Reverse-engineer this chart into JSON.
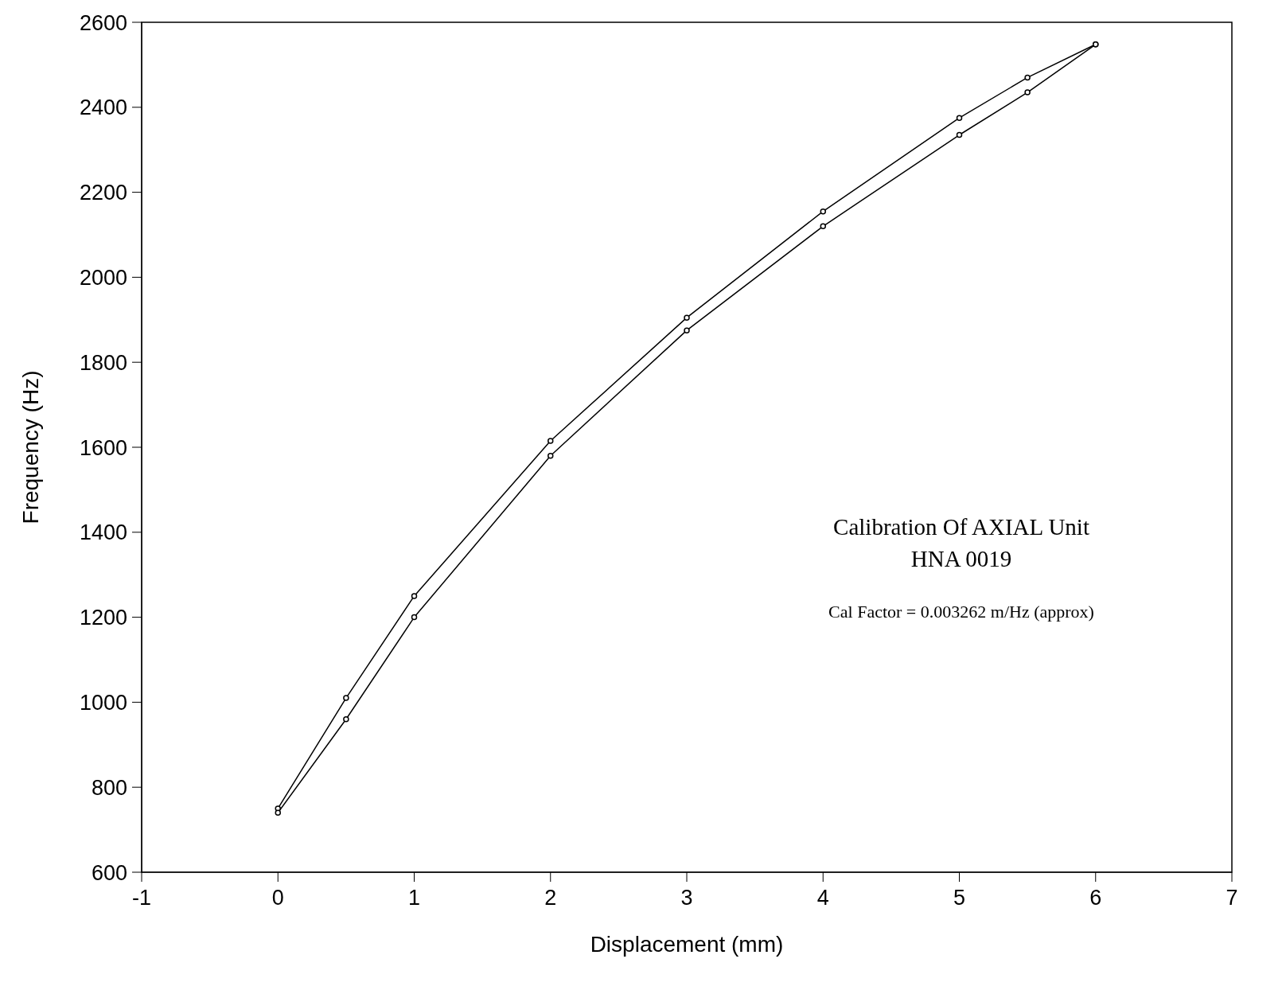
{
  "chart_data": {
    "type": "line",
    "xlabel": "Displacement (mm)",
    "ylabel": "Frequency (Hz)",
    "x": [
      0,
      0.5,
      1,
      2,
      3,
      4,
      5,
      5.5,
      6
    ],
    "series": [
      {
        "color": "#000000",
        "values": [
          750,
          1010,
          1250,
          1615,
          1905,
          2155,
          2375,
          2470,
          2548
        ]
      },
      {
        "color": "#000000",
        "values": [
          740,
          960,
          1200,
          1580,
          1875,
          2120,
          2335,
          2435,
          2548
        ]
      }
    ],
    "xlim": [
      -1,
      7
    ],
    "xticks": [
      -1,
      0,
      1,
      2,
      3,
      4,
      5,
      6,
      7
    ],
    "ylim": [
      600,
      2600
    ],
    "yticks": [
      600,
      800,
      1000,
      1200,
      1400,
      1600,
      1800,
      2000,
      2200,
      2400,
      2600
    ],
    "grid": false,
    "marker": "circle",
    "line_style": "solid",
    "annotations": [
      "Calibration Of AXIAL Unit",
      "HNA 0019",
      "Cal Factor = 0.003262 m/Hz (approx)"
    ]
  }
}
